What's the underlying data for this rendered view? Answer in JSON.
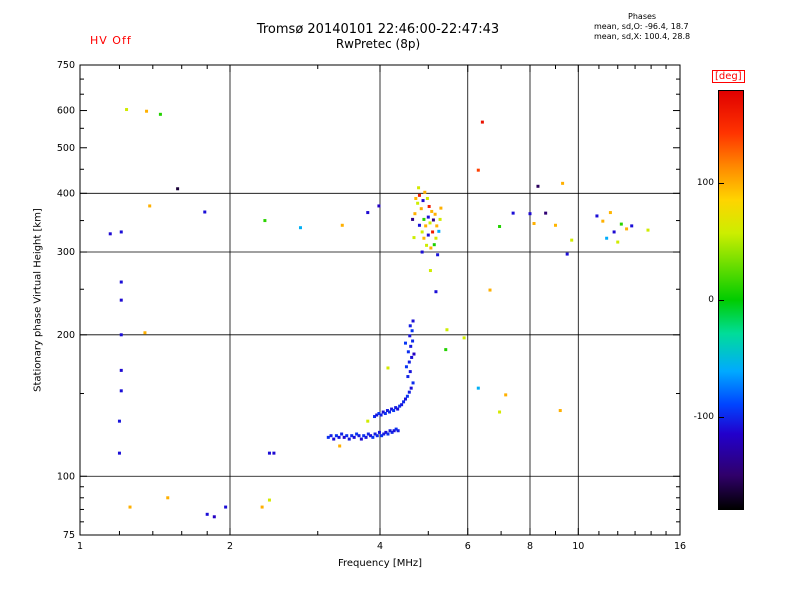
{
  "header": {
    "hv_status": "HV Off",
    "title_line1": "Tromsø 20140101 22:46:00-22:47:43",
    "title_line2": "RwPretec (8p)",
    "phases_title": "Phases",
    "phases_line1": "mean, sd,O: -96.4, 18.7",
    "phases_line2": "mean, sd,X: 100.4, 28.8"
  },
  "colors": {
    "background": "#ffffff",
    "frame": "#000000",
    "accent_red": "#ff0000"
  },
  "chart_data": {
    "type": "scatter",
    "title": "Tromsø 20140101 22:46:00-22:47:43",
    "subtitle": "RwPretec (8p)",
    "xlabel": "Frequency [MHz]",
    "ylabel": "Stationary phase Virtual Height [km]",
    "xscale": "log",
    "yscale": "log",
    "xlim": [
      1,
      16
    ],
    "ylim": [
      75,
      750
    ],
    "xticks": [
      1,
      2,
      4,
      6,
      8,
      10,
      16
    ],
    "yticks": [
      75,
      100,
      200,
      300,
      400,
      500,
      600,
      750
    ],
    "x_gridlines": [
      2,
      4,
      6,
      8,
      10
    ],
    "y_gridlines": [
      100,
      200,
      300,
      400
    ],
    "x_minor_ticks": [
      1.2,
      1.4,
      1.6,
      1.8,
      3,
      5,
      7,
      9,
      11,
      12,
      13,
      14,
      15
    ],
    "y_minor_ticks": [
      80,
      85,
      90,
      95,
      150,
      250,
      350,
      450,
      550,
      650,
      700
    ],
    "grid": true,
    "legend_position": "right-colorbar",
    "colorbar": {
      "label": "[deg]",
      "min": -180,
      "max": 180,
      "ticks": [
        100,
        0,
        -100
      ],
      "stops": [
        [
          0.0,
          "#000000"
        ],
        [
          0.08,
          "#30006a"
        ],
        [
          0.18,
          "#2200cc"
        ],
        [
          0.25,
          "#0044ff"
        ],
        [
          0.33,
          "#00aaff"
        ],
        [
          0.42,
          "#00dd99"
        ],
        [
          0.5,
          "#00cc00"
        ],
        [
          0.58,
          "#66dd00"
        ],
        [
          0.66,
          "#ccee00"
        ],
        [
          0.74,
          "#ffd400"
        ],
        [
          0.82,
          "#ff8800"
        ],
        [
          0.9,
          "#ff3300"
        ],
        [
          1.0,
          "#e00000"
        ]
      ]
    },
    "points_format": [
      "frequency_MHz",
      "virtual_height_km",
      "phase_deg"
    ],
    "points": [
      [
        3.15,
        121,
        -98
      ],
      [
        3.19,
        122,
        -104
      ],
      [
        3.23,
        120,
        -110
      ],
      [
        3.27,
        122,
        -96
      ],
      [
        3.31,
        121,
        -108
      ],
      [
        3.35,
        123,
        -102
      ],
      [
        3.39,
        121,
        -112
      ],
      [
        3.43,
        122,
        -98
      ],
      [
        3.47,
        120,
        -106
      ],
      [
        3.51,
        122,
        -100
      ],
      [
        3.55,
        121,
        -110
      ],
      [
        3.59,
        123,
        -96
      ],
      [
        3.63,
        122,
        -104
      ],
      [
        3.67,
        120,
        -112
      ],
      [
        3.71,
        122,
        -98
      ],
      [
        3.75,
        121,
        -106
      ],
      [
        3.79,
        123,
        -102
      ],
      [
        3.83,
        122,
        -110
      ],
      [
        3.87,
        121,
        -96
      ],
      [
        3.91,
        123,
        -104
      ],
      [
        3.95,
        122,
        -100
      ],
      [
        3.99,
        124,
        -108
      ],
      [
        4.03,
        122,
        -96
      ],
      [
        4.07,
        123,
        -104
      ],
      [
        4.11,
        124,
        -110
      ],
      [
        4.15,
        123,
        -98
      ],
      [
        4.19,
        125,
        -106
      ],
      [
        4.23,
        124,
        -102
      ],
      [
        4.27,
        125,
        -110
      ],
      [
        4.31,
        126,
        -98
      ],
      [
        4.35,
        125,
        -104
      ],
      [
        3.9,
        134,
        -100
      ],
      [
        3.94,
        135,
        -108
      ],
      [
        3.98,
        136,
        -96
      ],
      [
        4.02,
        135,
        -104
      ],
      [
        4.06,
        137,
        -110
      ],
      [
        4.1,
        136,
        -98
      ],
      [
        4.14,
        138,
        -106
      ],
      [
        4.18,
        137,
        -100
      ],
      [
        4.22,
        139,
        -108
      ],
      [
        4.26,
        138,
        -96
      ],
      [
        4.3,
        140,
        -104
      ],
      [
        4.34,
        139,
        -110
      ],
      [
        4.38,
        141,
        -98
      ],
      [
        4.42,
        142,
        -106
      ],
      [
        4.46,
        144,
        -100
      ],
      [
        4.5,
        146,
        -108
      ],
      [
        4.54,
        148,
        -96
      ],
      [
        4.58,
        151,
        -104
      ],
      [
        4.62,
        154,
        -110
      ],
      [
        4.66,
        158,
        -98
      ],
      [
        4.55,
        163,
        -102
      ],
      [
        4.6,
        167,
        -108
      ],
      [
        4.52,
        171,
        -96
      ],
      [
        4.58,
        175,
        -104
      ],
      [
        4.63,
        179,
        -110
      ],
      [
        4.56,
        184,
        -98
      ],
      [
        4.61,
        189,
        -106
      ],
      [
        4.65,
        194,
        -100
      ],
      [
        4.59,
        199,
        -108
      ],
      [
        4.64,
        204,
        -96
      ],
      [
        4.6,
        209,
        -104
      ],
      [
        4.66,
        214,
        -110
      ],
      [
        4.5,
        192,
        -95
      ],
      [
        4.68,
        182,
        -118
      ],
      [
        3.32,
        116,
        100
      ],
      [
        3.78,
        131,
        60
      ],
      [
        4.15,
        170,
        62
      ],
      [
        4.65,
        352,
        -140
      ],
      [
        4.7,
        362,
        100
      ],
      [
        4.72,
        390,
        98
      ],
      [
        4.76,
        381,
        58
      ],
      [
        4.8,
        396,
        160
      ],
      [
        4.8,
        342,
        -108
      ],
      [
        4.84,
        371,
        102
      ],
      [
        4.86,
        331,
        60
      ],
      [
        4.88,
        386,
        -112
      ],
      [
        4.9,
        352,
        12
      ],
      [
        4.9,
        321,
        98
      ],
      [
        4.92,
        402,
        100
      ],
      [
        4.94,
        341,
        100
      ],
      [
        4.96,
        310,
        58
      ],
      [
        4.98,
        390,
        62
      ],
      [
        5.0,
        356,
        -110
      ],
      [
        5.0,
        326,
        -112
      ],
      [
        5.02,
        375,
        158
      ],
      [
        5.04,
        346,
        58
      ],
      [
        5.06,
        306,
        100
      ],
      [
        5.08,
        366,
        98
      ],
      [
        5.1,
        331,
        162
      ],
      [
        5.12,
        351,
        -142
      ],
      [
        5.14,
        311,
        8
      ],
      [
        5.16,
        361,
        100
      ],
      [
        5.18,
        321,
        62
      ],
      [
        5.2,
        341,
        98
      ],
      [
        5.22,
        296,
        -108
      ],
      [
        5.25,
        332,
        -60
      ],
      [
        5.28,
        352,
        60
      ],
      [
        4.86,
        300,
        -110
      ],
      [
        4.78,
        411,
        62
      ],
      [
        5.3,
        372,
        100
      ],
      [
        4.68,
        322,
        58
      ],
      [
        1.15,
        328,
        -112
      ],
      [
        1.21,
        331,
        -110
      ],
      [
        1.38,
        376,
        100
      ],
      [
        1.57,
        409,
        -165
      ],
      [
        1.78,
        365,
        -110
      ],
      [
        2.35,
        350,
        12
      ],
      [
        2.77,
        338,
        -58
      ],
      [
        3.36,
        342,
        100
      ],
      [
        3.78,
        364,
        -112
      ],
      [
        3.98,
        376,
        -118
      ],
      [
        6.95,
        340,
        10
      ],
      [
        7.4,
        363,
        -110
      ],
      [
        8.0,
        362,
        -112
      ],
      [
        8.15,
        345,
        100
      ],
      [
        8.3,
        414,
        -155
      ],
      [
        8.6,
        363,
        -148
      ],
      [
        9.0,
        342,
        98
      ],
      [
        9.3,
        420,
        100
      ],
      [
        9.7,
        318,
        60
      ],
      [
        10.9,
        358,
        -110
      ],
      [
        11.2,
        349,
        100
      ],
      [
        11.4,
        321,
        -60
      ],
      [
        11.6,
        364,
        98
      ],
      [
        11.8,
        331,
        -112
      ],
      [
        12.0,
        315,
        60
      ],
      [
        12.2,
        344,
        12
      ],
      [
        12.5,
        336,
        100
      ],
      [
        12.8,
        341,
        -110
      ],
      [
        13.8,
        334,
        60
      ],
      [
        1.24,
        603,
        60
      ],
      [
        1.36,
        598,
        100
      ],
      [
        1.45,
        589,
        10
      ],
      [
        6.42,
        567,
        168
      ],
      [
        6.3,
        448,
        140
      ],
      [
        1.21,
        259,
        -110
      ],
      [
        1.21,
        237,
        -112
      ],
      [
        1.35,
        202,
        100
      ],
      [
        1.21,
        200,
        -110
      ],
      [
        5.05,
        274,
        60
      ],
      [
        5.18,
        247,
        -110
      ],
      [
        6.65,
        249,
        100
      ],
      [
        5.45,
        205,
        58
      ],
      [
        5.42,
        186,
        10
      ],
      [
        5.9,
        197,
        60
      ],
      [
        9.5,
        297,
        -110
      ],
      [
        6.3,
        154,
        -58
      ],
      [
        7.15,
        149,
        100
      ],
      [
        6.95,
        137,
        62
      ],
      [
        9.2,
        138,
        100
      ],
      [
        1.2,
        112,
        -110
      ],
      [
        1.2,
        131,
        -108
      ],
      [
        1.26,
        86,
        100
      ],
      [
        1.5,
        90,
        100
      ],
      [
        1.8,
        83,
        -110
      ],
      [
        1.86,
        82,
        -118
      ],
      [
        1.96,
        86,
        -110
      ],
      [
        2.32,
        86,
        100
      ],
      [
        2.4,
        89,
        62
      ],
      [
        2.4,
        112,
        -110
      ],
      [
        2.45,
        112,
        -112
      ],
      [
        1.21,
        152,
        -110
      ],
      [
        1.21,
        168,
        -112
      ]
    ]
  }
}
